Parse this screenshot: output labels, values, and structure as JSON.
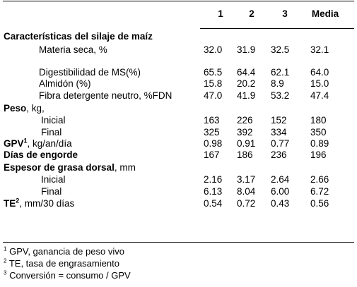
{
  "header": {
    "col1": "1",
    "col2": "2",
    "col3": "3",
    "col4": "Media"
  },
  "sections": {
    "silaje": "Características del silaje de maíz",
    "peso": "Peso",
    "peso_unit": ", kg,",
    "gpv": "GPV",
    "gpv_sup": "1",
    "gpv_unit": ", kg/an/día",
    "dias": "Días de engorde",
    "espesor": "Espesor de grasa dorsal",
    "espesor_unit": ", mm",
    "te": "TE",
    "te_sup": "2",
    "te_unit": ", mm/30 días"
  },
  "rows": {
    "materia_seca": {
      "label": "Materia seca, %",
      "v": [
        "32.0",
        "31.9",
        "32.5",
        "32.1"
      ]
    },
    "digestibilidad": {
      "label": "Digestibilidad de MS(%)",
      "v": [
        "65.5",
        "64.4",
        "62.1",
        "64.0"
      ]
    },
    "almidon": {
      "label": "Almidón (%)",
      "v": [
        "15.8",
        "20.2",
        "8.9",
        "15.0"
      ]
    },
    "fibra": {
      "label": "Fibra detergente neutro, %FDN",
      "v": [
        "47.0",
        "41.9",
        "53.2",
        "47.4"
      ]
    },
    "peso_inicial": {
      "label": "Inicial",
      "v": [
        "163",
        "226",
        "152",
        "180"
      ]
    },
    "peso_final": {
      "label": "Final",
      "v": [
        "325",
        "392",
        "334",
        "350"
      ]
    },
    "gpv": {
      "v": [
        "0.98",
        "0.91",
        "0.77",
        "0.89"
      ]
    },
    "dias": {
      "v": [
        "167",
        "186",
        "236",
        "196"
      ]
    },
    "espesor_inicial": {
      "label": "Inicial",
      "v": [
        "2.16",
        "3.17",
        "2.64",
        "2.66"
      ]
    },
    "espesor_final": {
      "label": "Final",
      "v": [
        "6.13",
        "8.04",
        "6.00",
        "6.72"
      ]
    },
    "te": {
      "v": [
        "0.54",
        "0.72",
        "0.43",
        "0.56"
      ]
    }
  },
  "footnotes": {
    "n1_mark": "1",
    "n1": "GPV, ganancia de peso vivo",
    "n2_mark": "2",
    "n2": "TE, tasa de engrasamiento",
    "n3_mark": "3",
    "n3": "Conversión = consumo / GPV"
  }
}
